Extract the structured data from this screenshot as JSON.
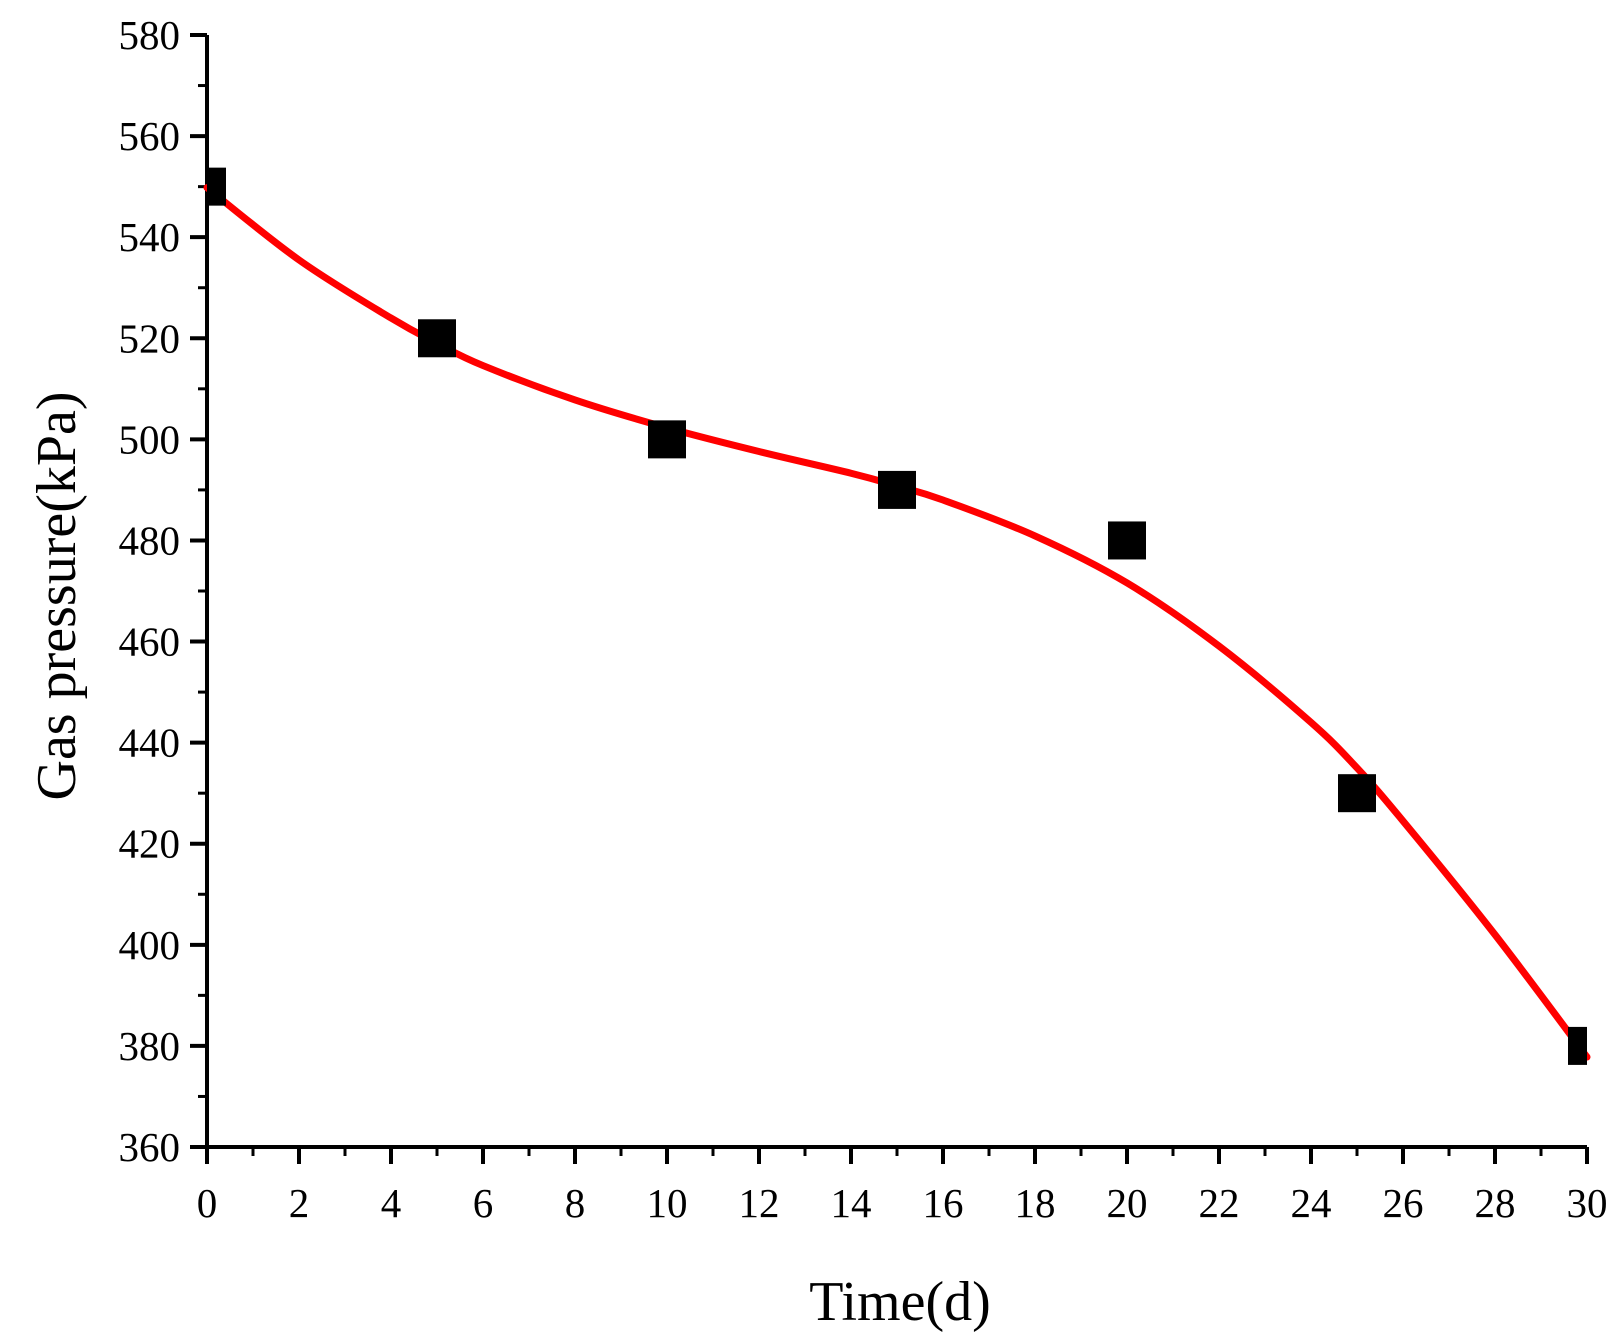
{
  "chart_data": {
    "type": "scatter",
    "xlabel": "Time(d)",
    "ylabel": "Gas pressure(kPa)",
    "xlim": [
      0,
      30
    ],
    "ylim": [
      360,
      580
    ],
    "x_ticks": [
      0,
      2,
      4,
      6,
      8,
      10,
      12,
      14,
      16,
      18,
      20,
      22,
      24,
      26,
      28,
      30
    ],
    "y_ticks": [
      360,
      380,
      400,
      420,
      440,
      460,
      480,
      500,
      520,
      540,
      560,
      580
    ],
    "grid": false,
    "series": [
      {
        "kind": "scatter",
        "marker": "square",
        "color": "#000000",
        "x": [
          0,
          5,
          10,
          15,
          20,
          25,
          30
        ],
        "y": [
          550,
          520,
          500,
          490,
          480,
          430,
          380
        ]
      },
      {
        "kind": "fit-line",
        "color": "#ff0000",
        "x": [
          0,
          2,
          4,
          5,
          6,
          8,
          10,
          12,
          14,
          15,
          16,
          18,
          20,
          22,
          24,
          25,
          26,
          28,
          30
        ],
        "y": [
          549.8,
          535.5,
          524.0,
          519.0,
          514.6,
          507.8,
          502.3,
          497.6,
          493.3,
          490.8,
          488.0,
          480.9,
          471.6,
          459.1,
          444.0,
          435.0,
          424.5,
          402.0,
          377.8
        ]
      }
    ]
  }
}
